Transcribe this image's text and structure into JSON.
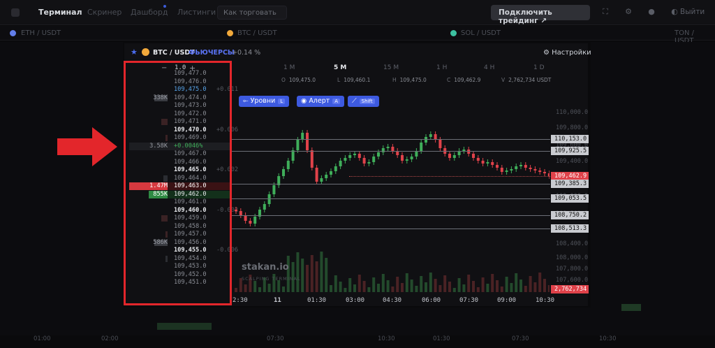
{
  "nav": {
    "tabs": [
      "Терминал",
      "Скринер",
      "Дашборд",
      "Листинги"
    ],
    "how_to": "Как торговать",
    "connect_button": "Подключить трейдинг",
    "logout": "Выйти"
  },
  "tickers": [
    {
      "symbol": "ETH / USDT",
      "color": "#627eea"
    },
    {
      "symbol": "BTC / USDT",
      "color": "#f2a93b"
    },
    {
      "symbol": "SOL / USDT",
      "color": "#3cc0a0"
    },
    {
      "symbol": "TON / USDT",
      "color": "#2f8fe0"
    }
  ],
  "panel": {
    "symbol": "BTC / USDT",
    "market": "ФЬЮЧЕРСЫ",
    "change": "+0.14 %",
    "settings": "Настройки"
  },
  "orderbook": {
    "scale": "1.0",
    "rows": [
      {
        "price": "109,477.0"
      },
      {
        "price": "109,476.0"
      },
      {
        "price": "109,475.0",
        "side": "+0.011",
        "color": "#57a3e8"
      },
      {
        "price": "109,474.0",
        "volume": "338K"
      },
      {
        "price": "109,473.0"
      },
      {
        "price": "109,472.0"
      },
      {
        "price": "109,471.0"
      },
      {
        "price": "109,470.0",
        "side": "+0.006",
        "bold": true
      },
      {
        "price": "109,469.0"
      },
      {
        "price": "+0.0046%",
        "volume": "3.58K",
        "highlight": true
      },
      {
        "price": "109,467.0"
      },
      {
        "price": "109,466.0"
      },
      {
        "price": "109,465.0",
        "side": "+0.002",
        "bold": true
      },
      {
        "price": "109,464.0"
      },
      {
        "price": "109,463.0",
        "volume": "1.47M",
        "ask": true
      },
      {
        "price": "109,462.0",
        "volume": "855K",
        "bid": true
      },
      {
        "price": "109,461.0"
      },
      {
        "price": "109,460.0",
        "side": "-0.002",
        "bold": true
      },
      {
        "price": "109,459.0"
      },
      {
        "price": "109,458.0"
      },
      {
        "price": "109,457.0"
      },
      {
        "price": "109,456.0",
        "volume": "586K"
      },
      {
        "price": "109,455.0",
        "side": "-0.006",
        "bold": true
      },
      {
        "price": "109,454.0"
      },
      {
        "price": "109,453.0"
      },
      {
        "price": "109,452.0"
      },
      {
        "price": "109,451.0"
      }
    ]
  },
  "timeframes": [
    "1 M",
    "5 M",
    "15 M",
    "1 H",
    "4 H",
    "1 D"
  ],
  "active_timeframe": "5 M",
  "ohlc": {
    "O": "109,475.0",
    "L": "109,460.1",
    "H": "109,475.0",
    "C": "109,462.9",
    "V": "2,762,734",
    "unit": "USDT"
  },
  "tools": [
    {
      "label": "Уровни",
      "key": "L"
    },
    {
      "label": "Алерт",
      "key": "A"
    },
    {
      "label": "",
      "key": "Shift"
    }
  ],
  "price_axis": [
    "110,400.0",
    "110,000.0",
    "109,800.0",
    "109,600.0",
    "109,400.0",
    "109,200.0",
    "109,000.0",
    "108,800.0",
    "108,600.0",
    "108,400.0",
    "108,000.0",
    "107,800.0",
    "107,600.0"
  ],
  "levels": [
    {
      "price": "110,153.0"
    },
    {
      "price": "109,925.5"
    },
    {
      "price": "109,462.9",
      "current": true
    },
    {
      "price": "109,385.3"
    },
    {
      "price": "109,053.5"
    },
    {
      "price": "108,750.2"
    },
    {
      "price": "108,513.3"
    },
    {
      "price": "2,762,734",
      "volume": true
    }
  ],
  "time_axis": [
    "2:30",
    "11",
    "01:30",
    "03:00",
    "04:30",
    "06:00",
    "07:30",
    "09:00",
    "10:30"
  ],
  "watermark": {
    "title": "stakan.io",
    "subtitle": "SCALPING TERMINAL"
  },
  "bottom_times": [
    "01:00",
    "02:00",
    "07:30",
    "10:30",
    "01:30",
    "07:30",
    "10:30"
  ],
  "colors": {
    "up": "#3fae5a",
    "down": "#e0424a",
    "accent": "#3d5ae0",
    "highlight": "#e3262b"
  }
}
